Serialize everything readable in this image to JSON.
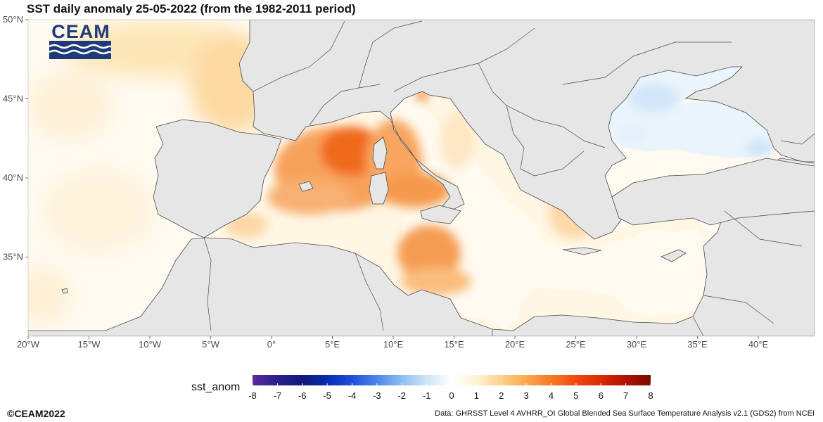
{
  "title": "SST daily anomaly 25-05-2022 (from the 1982-2011 period)",
  "logo": {
    "text": "CEAM"
  },
  "map": {
    "lat_ticks": [
      "50°N",
      "45°N",
      "40°N",
      "35°N"
    ],
    "lon_ticks": [
      "20°W",
      "15°W",
      "10°W",
      "5°W",
      "0°",
      "5°E",
      "10°E",
      "15°E",
      "20°E",
      "25°E",
      "30°E",
      "35°E",
      "40°E"
    ],
    "land_color": "#e6e6e6",
    "border_color": "#4a4a4a"
  },
  "legend": {
    "title": "sst_anom",
    "ticks": [
      "-8",
      "-7",
      "-6",
      "-5",
      "-4",
      "-3",
      "-2",
      "-1",
      "0",
      "1",
      "2",
      "3",
      "4",
      "5",
      "6",
      "7",
      "8"
    ],
    "colors": [
      "#5b2a9e",
      "#2a1f8a",
      "#101a7a",
      "#0a2ab0",
      "#1f4fd8",
      "#4b86ea",
      "#8fbdf2",
      "#cfe4f8",
      "#ffffff",
      "#fff3d6",
      "#fdd08a",
      "#fba84f",
      "#f77a21",
      "#ef4a0f",
      "#d92a06",
      "#b01402",
      "#7a0a00"
    ]
  },
  "footer": {
    "copyright": "©CEAM2022",
    "source": "Data: GHRSST Level 4 AVHRR_OI Global Blended Sea Surface Temperature Analysis v2.1 (GDS2) from NCEI"
  }
}
